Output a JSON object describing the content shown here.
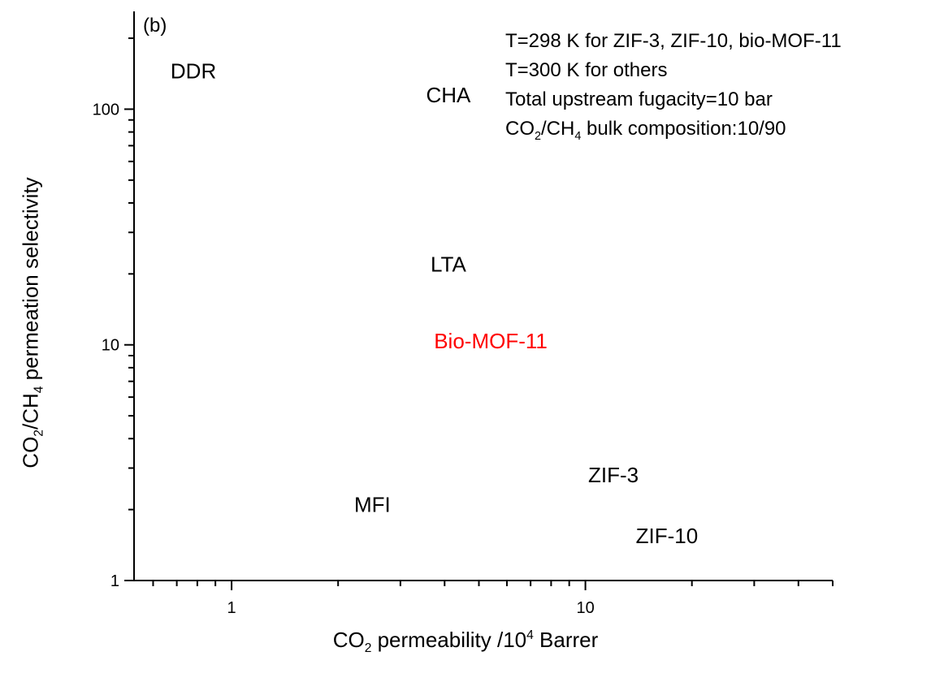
{
  "panel_label": "(b)",
  "annotations": [
    "T=298 K for ZIF-3, ZIF-10, bio-MOF-11",
    "T=300 K for others",
    "Total upstream fugacity=10 bar"
  ],
  "composition_note": {
    "p1": "CO",
    "s1": "2",
    "p2": "/CH",
    "s2": "4",
    "p3": " bulk composition:10/90"
  },
  "axis_titles": {
    "x": {
      "p1": "CO",
      "s1": "2",
      "p2": " permeability /10",
      "sup": "4",
      "p3": " Barrer"
    },
    "y": {
      "p1": "CO",
      "s1": "2",
      "p2": "/CH",
      "s2": "4",
      "p3": " permeation selectivity"
    }
  },
  "chart_data": {
    "type": "scatter",
    "x_scale": "log",
    "y_scale": "log",
    "xlim": [
      0.53,
      50
    ],
    "ylim": [
      1,
      260
    ],
    "x_ticks": [
      1,
      10
    ],
    "x_tick_labels": [
      "1",
      "10"
    ],
    "y_ticks": [
      1,
      10,
      100
    ],
    "y_tick_labels": [
      "1",
      "10",
      "100"
    ],
    "points": [
      {
        "label": "DDR",
        "x": 0.78,
        "y": 145,
        "color": "#000000"
      },
      {
        "label": "CHA",
        "x": 4.1,
        "y": 115,
        "color": "#000000"
      },
      {
        "label": "LTA",
        "x": 4.1,
        "y": 22,
        "color": "#000000"
      },
      {
        "label": "Bio-MOF-11",
        "x": 5.4,
        "y": 10.4,
        "color": "#ff0000"
      },
      {
        "label": "ZIF-3",
        "x": 12.0,
        "y": 2.8,
        "color": "#000000"
      },
      {
        "label": "MFI",
        "x": 2.5,
        "y": 2.1,
        "color": "#000000"
      },
      {
        "label": "ZIF-10",
        "x": 17.0,
        "y": 1.55,
        "color": "#000000"
      }
    ]
  }
}
